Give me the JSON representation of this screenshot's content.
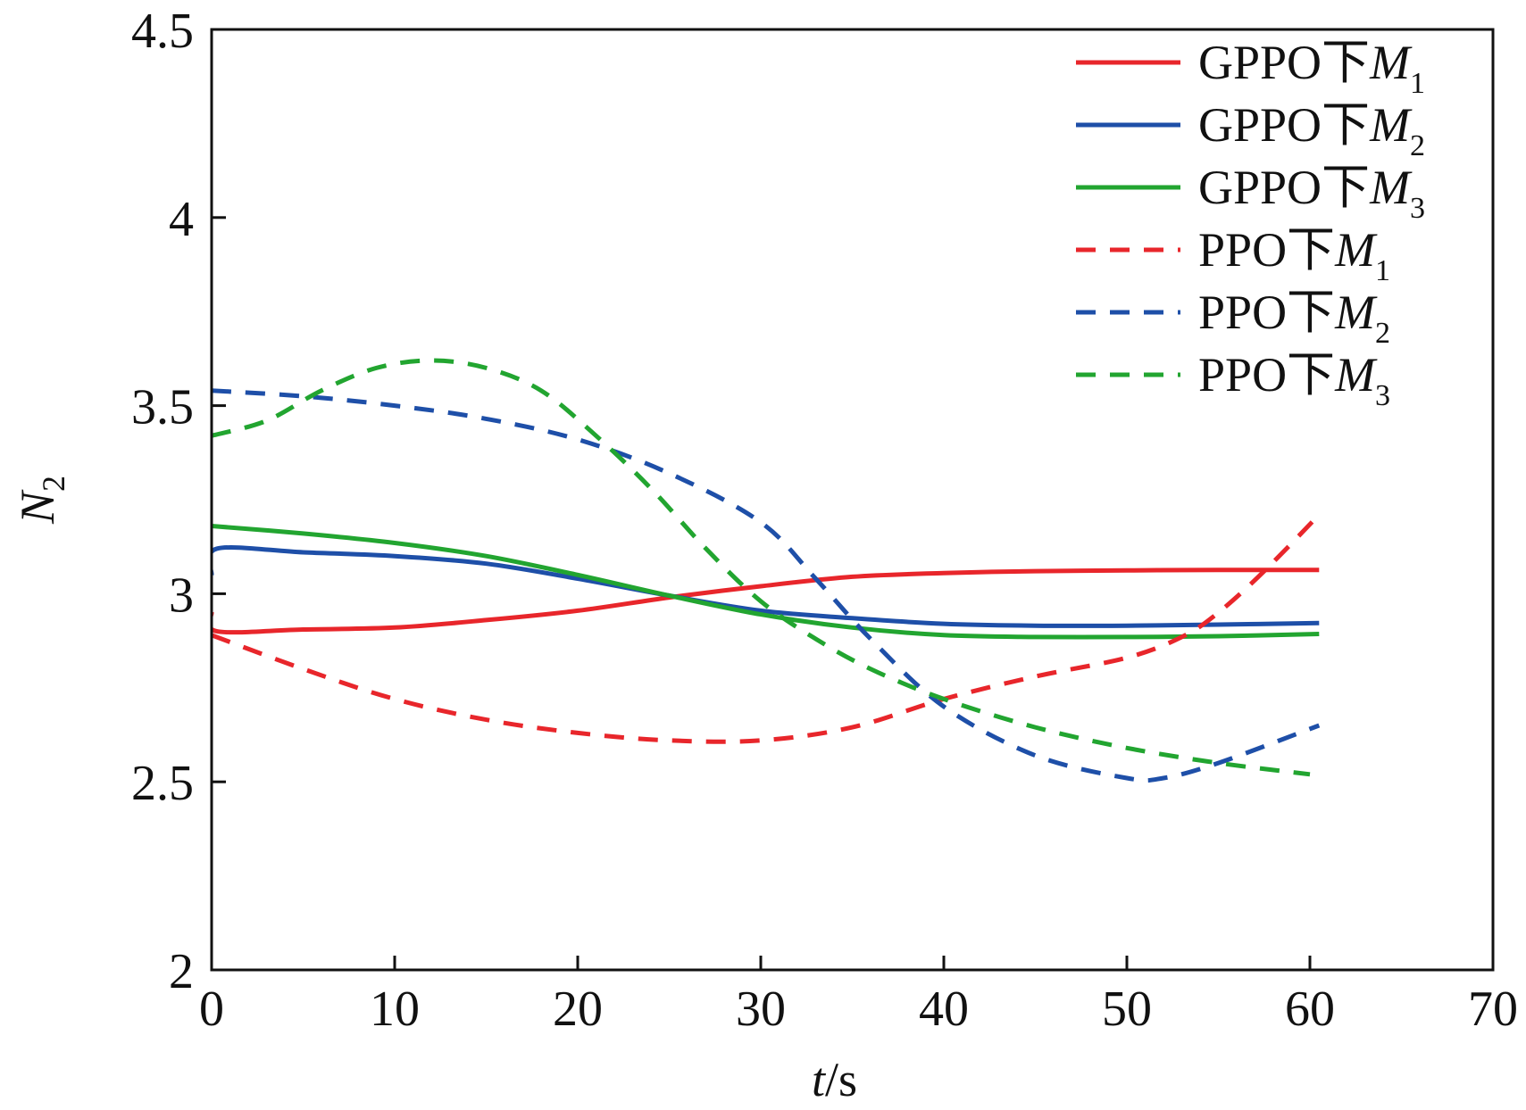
{
  "chart_data": {
    "type": "line",
    "title": "",
    "xlabel": {
      "var": "t",
      "unit": "/s"
    },
    "ylabel": {
      "var": "N",
      "sub": "2"
    },
    "xlim": [
      0,
      70
    ],
    "ylim": [
      2,
      4.5
    ],
    "xticks": [
      0,
      10,
      20,
      30,
      40,
      50,
      60,
      70
    ],
    "xtick_labels": [
      "0",
      "10",
      "20",
      "30",
      "40",
      "50",
      "60",
      "70"
    ],
    "yticks": [
      2,
      2.5,
      3,
      3.5,
      4,
      4.5
    ],
    "ytick_labels": [
      "2",
      "2.5",
      "3",
      "3.5",
      "4",
      "4.5"
    ],
    "grid": false,
    "legend_position": "top-right",
    "series": [
      {
        "name": "GPPO下M1",
        "legend_prefix": "GPPO下",
        "legend_var": "M",
        "legend_sub": "1",
        "color": "#e8262b",
        "style": "solid",
        "x": [
          0,
          0.3,
          5,
          10,
          15,
          20,
          25,
          30,
          35,
          40,
          45,
          50,
          55,
          60.5
        ],
        "y": [
          2.95,
          2.9,
          2.905,
          2.91,
          2.93,
          2.955,
          2.99,
          3.02,
          3.045,
          3.055,
          3.06,
          3.062,
          3.063,
          3.063
        ]
      },
      {
        "name": "GPPO下M2",
        "legend_prefix": "GPPO下",
        "legend_var": "M",
        "legend_sub": "2",
        "color": "#1e4fa8",
        "style": "solid",
        "x": [
          0,
          0.3,
          5,
          10,
          15,
          20,
          25,
          30,
          35,
          40,
          45,
          50,
          55,
          60.5
        ],
        "y": [
          3.05,
          3.12,
          3.11,
          3.1,
          3.08,
          3.04,
          2.995,
          2.955,
          2.935,
          2.92,
          2.915,
          2.915,
          2.918,
          2.922
        ]
      },
      {
        "name": "GPPO下M3",
        "legend_prefix": "GPPO下",
        "legend_var": "M",
        "legend_sub": "3",
        "color": "#22a530",
        "style": "solid",
        "x": [
          0,
          5,
          10,
          15,
          20,
          25,
          30,
          35,
          40,
          45,
          50,
          55,
          60.5
        ],
        "y": [
          3.18,
          3.16,
          3.135,
          3.1,
          3.05,
          2.995,
          2.945,
          2.91,
          2.89,
          2.885,
          2.885,
          2.887,
          2.893
        ]
      },
      {
        "name": "PPO下M1",
        "legend_prefix": "PPO下",
        "legend_var": "M",
        "legend_sub": "1",
        "color": "#e8262b",
        "style": "dashed",
        "x": [
          0,
          5,
          10,
          15,
          20,
          25,
          30,
          35,
          40,
          45,
          50,
          53,
          55,
          57.5,
          60.5
        ],
        "y": [
          2.89,
          2.8,
          2.72,
          2.665,
          2.63,
          2.61,
          2.61,
          2.645,
          2.72,
          2.78,
          2.83,
          2.885,
          2.95,
          3.06,
          3.21
        ]
      },
      {
        "name": "PPO下M2",
        "legend_prefix": "PPO下",
        "legend_var": "M",
        "legend_sub": "2",
        "color": "#1e4fa8",
        "style": "dashed",
        "x": [
          0,
          5,
          10,
          15,
          20,
          25,
          30,
          33,
          36,
          40,
          45,
          50,
          52,
          55,
          60.5
        ],
        "y": [
          3.54,
          3.525,
          3.5,
          3.465,
          3.41,
          3.32,
          3.19,
          3.04,
          2.88,
          2.7,
          2.57,
          2.51,
          2.51,
          2.55,
          2.65
        ]
      },
      {
        "name": "PPO下M3",
        "legend_prefix": "PPO下",
        "legend_var": "M",
        "legend_sub": "3",
        "color": "#22a530",
        "style": "dashed",
        "x": [
          0,
          3,
          6,
          9,
          12,
          15,
          18,
          21,
          24,
          27,
          30,
          33,
          36,
          40,
          45,
          50,
          55,
          60
        ],
        "y": [
          3.42,
          3.46,
          3.54,
          3.6,
          3.62,
          3.6,
          3.54,
          3.42,
          3.28,
          3.12,
          2.98,
          2.88,
          2.8,
          2.72,
          2.645,
          2.59,
          2.55,
          2.52
        ]
      }
    ]
  }
}
